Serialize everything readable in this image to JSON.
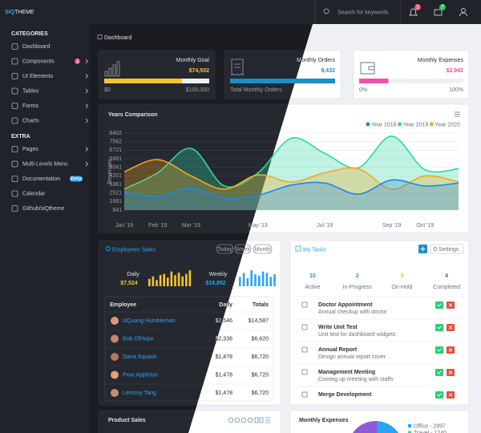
{
  "sidebar": {
    "logo_a": "SIQ",
    "logo_b": "THEME",
    "sections": [
      {
        "title": "CATEGORIES",
        "items": [
          {
            "label": "Dashboard"
          },
          {
            "label": "Components",
            "badge": "3"
          },
          {
            "label": "UI Elements"
          },
          {
            "label": "Tables"
          },
          {
            "label": "Forms"
          },
          {
            "label": "Charts"
          }
        ]
      },
      {
        "title": "EXTRA",
        "items": [
          {
            "label": "Pages"
          },
          {
            "label": "Multi-Levels Menu"
          },
          {
            "label": "Documentation",
            "badge": "Beta"
          },
          {
            "label": "Calendar"
          },
          {
            "label": "Github/siQtheme"
          }
        ]
      }
    ]
  },
  "topbar": {
    "search": "Search for keywords",
    "notifications": "3",
    "messages": "7"
  },
  "breadcrumb": "Dashboard",
  "stats": [
    {
      "title": "Monthly Goal",
      "value": "$74,502",
      "progress": 74,
      "min_label": "$0",
      "max_label": "$100,000",
      "color": "#f4c430"
    },
    {
      "title": "Monthly Orders",
      "value": "9,432",
      "progress": 100,
      "caption": "Total Monthly Orders",
      "color": "#1b8fc7"
    },
    {
      "title": "Monthly Expenses",
      "value": "$2,942",
      "progress": 28,
      "min_label": "0%",
      "max_label": "100%",
      "color": "#f050a8"
    }
  ],
  "chart_data": {
    "type": "area",
    "title": "Years Comparison",
    "y_label": "Revenues",
    "categories": [
      "Jan '19",
      "Feb '19",
      "Mar '19",
      null,
      "May '19",
      null,
      "Jul '19",
      null,
      "Sep '19",
      "Oct '19",
      null
    ],
    "series": [
      {
        "name": "Year 2018",
        "color": "#1e88e5",
        "values": [
          2600,
          2200,
          3000,
          2000,
          2300,
          3300,
          3500,
          2400,
          3800,
          3200,
          3500
        ]
      },
      {
        "name": "Year 2019",
        "color": "#2ed8a3",
        "values": [
          2900,
          4500,
          6900,
          3200,
          4500,
          7900,
          6400,
          5000,
          8100,
          4800,
          4900
        ]
      },
      {
        "name": "Year 2020",
        "color": "#f5a623",
        "values": [
          4600,
          5800,
          4200,
          2900,
          4300,
          3600,
          4500,
          4900,
          2900,
          4200,
          3600
        ]
      }
    ],
    "ylim": [
      841,
      8402
    ],
    "yticks": [
      8402,
      7562,
      6721,
      5881,
      5041,
      4201,
      3361,
      2521,
      1681,
      841
    ],
    "grid": true,
    "legend": "top-right"
  },
  "employees": {
    "title": "Employees Sales",
    "buttons": [
      "Today",
      "Week",
      "Month"
    ],
    "daily_label": "Daily",
    "daily_value": "$7,524",
    "daily_bars": [
      6,
      8,
      5,
      9,
      10,
      7,
      12,
      9,
      11,
      8,
      10,
      13
    ],
    "weekly_label": "Weekly",
    "weekly_value": "$18,852",
    "weekly_bars": [
      7,
      10,
      6,
      12,
      9,
      8,
      11,
      10,
      7,
      9
    ],
    "columns": [
      "Employee",
      "Daily",
      "Totals"
    ],
    "rows": [
      [
        "siQuang Humbleman",
        "$2,546",
        "$14,587"
      ],
      [
        "Bob OfHope",
        "$2,338",
        "$6,620"
      ],
      [
        "Dana Squash",
        "$1,478",
        "$6,720"
      ],
      [
        "Pear Appleton",
        "$1,478",
        "$6,720"
      ],
      [
        "Lemony Tang",
        "$1,478",
        "$6,720"
      ]
    ]
  },
  "tasks": {
    "title": "My Tasks",
    "settings": "Settings",
    "counts": [
      {
        "value": 10,
        "label": "Active",
        "color": "#1b8fc7"
      },
      {
        "value": 2,
        "label": "In-Progress",
        "color": "#22a86b"
      },
      {
        "value": 3,
        "label": "On-Hold",
        "color": "#f0b400"
      },
      {
        "value": 4,
        "label": "Completed",
        "color": "#555b66"
      }
    ],
    "items": [
      {
        "title": "Doctor Appointment",
        "desc": "Annual checkup with doctor"
      },
      {
        "title": "Write Unit Test",
        "desc": "Unit test for dashboard widgets"
      },
      {
        "title": "Annual Report",
        "desc": "Design annual report cover"
      },
      {
        "title": "Management Meeting",
        "desc": "Coming up meeting with staffs"
      },
      {
        "title": "Merge Development",
        "desc": ""
      }
    ]
  },
  "product_sales": {
    "title": "Product Sales"
  },
  "monthly_expenses": {
    "title": "Monthly Expenses",
    "legend": [
      "Office - 2897",
      "Travel - 1240"
    ]
  }
}
